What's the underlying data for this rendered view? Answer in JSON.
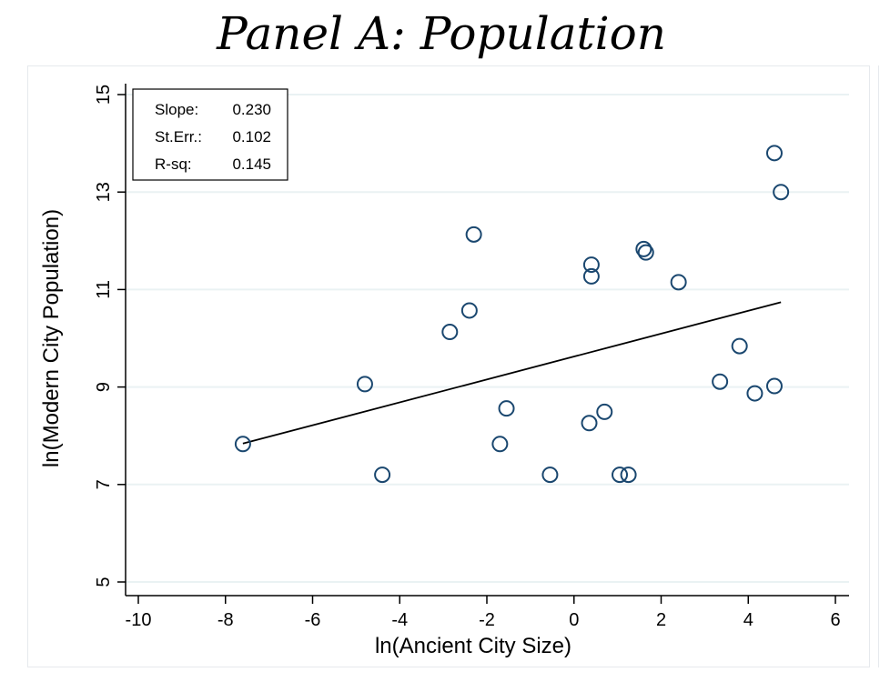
{
  "title": "Panel A: Population",
  "chart_data": {
    "type": "scatter",
    "title": "Panel A: Population",
    "xlabel": "ln(Ancient City Size)",
    "ylabel": "ln(Modern City Population)",
    "xlim": [
      -10.3,
      6.3
    ],
    "ylim": [
      4.8,
      15.2
    ],
    "xticks": [
      -10,
      -8,
      -6,
      -4,
      -2,
      0,
      2,
      4,
      6
    ],
    "yticks": [
      5,
      7,
      9,
      11,
      13,
      15
    ],
    "grid": "horizontal",
    "points": [
      {
        "x": -7.6,
        "y": 7.83
      },
      {
        "x": -4.8,
        "y": 9.06
      },
      {
        "x": -4.4,
        "y": 7.2
      },
      {
        "x": -2.85,
        "y": 10.13
      },
      {
        "x": -2.4,
        "y": 10.57
      },
      {
        "x": -2.3,
        "y": 12.13
      },
      {
        "x": -1.7,
        "y": 7.83
      },
      {
        "x": -1.55,
        "y": 8.56
      },
      {
        "x": -0.55,
        "y": 7.2
      },
      {
        "x": 0.35,
        "y": 8.26
      },
      {
        "x": 0.4,
        "y": 11.27
      },
      {
        "x": 0.4,
        "y": 11.51
      },
      {
        "x": 0.7,
        "y": 8.49
      },
      {
        "x": 1.05,
        "y": 7.2
      },
      {
        "x": 1.25,
        "y": 7.2
      },
      {
        "x": 1.6,
        "y": 11.83
      },
      {
        "x": 1.65,
        "y": 11.76
      },
      {
        "x": 2.4,
        "y": 11.15
      },
      {
        "x": 3.35,
        "y": 9.11
      },
      {
        "x": 3.8,
        "y": 9.84
      },
      {
        "x": 4.15,
        "y": 8.87
      },
      {
        "x": 4.6,
        "y": 13.8
      },
      {
        "x": 4.6,
        "y": 9.02
      },
      {
        "x": 4.75,
        "y": 13.0
      }
    ],
    "fit_line": {
      "x": [
        -7.6,
        4.75
      ],
      "y": [
        7.84,
        10.74
      ]
    },
    "stats": [
      {
        "label": "Slope:",
        "value": "0.230"
      },
      {
        "label": "St.Err.:",
        "value": "0.102"
      },
      {
        "label": "R-sq:",
        "value": "0.145"
      }
    ],
    "colors": {
      "marker": "#1a476f",
      "grid": "#eaf2f3",
      "line": "#000000"
    }
  }
}
